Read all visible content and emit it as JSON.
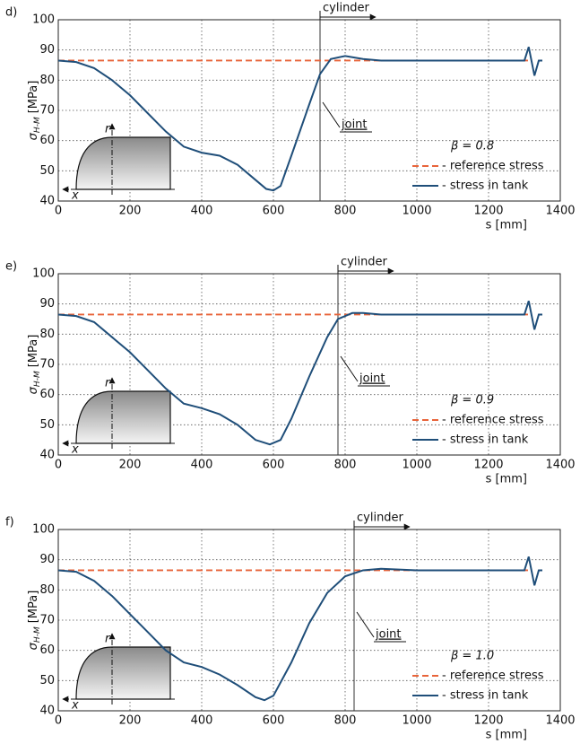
{
  "chart_data": [
    {
      "type": "line",
      "panel_label": "d)",
      "xlabel": "s [mm]",
      "ylabel": {
        "symbol": "σ",
        "subscript": "H-M",
        "unit": "[MPa]"
      },
      "xlim": [
        0,
        1400
      ],
      "ylim": [
        40,
        100
      ],
      "xticks": [
        0,
        200,
        400,
        600,
        800,
        1000,
        1200,
        1400
      ],
      "yticks": [
        40,
        50,
        60,
        70,
        80,
        90,
        100
      ],
      "grid": true,
      "legend": "lower right",
      "joint_x": 730,
      "annotations": {
        "cylinder": "cylinder",
        "joint": "joint",
        "beta": "β = 0.8"
      },
      "inset_labels": {
        "r": "r",
        "x": "x"
      },
      "series": [
        {
          "name": "- reference stress",
          "color": "#e8643a",
          "dashed": true,
          "x": [
            0,
            1310
          ],
          "values": [
            86.5,
            86.5
          ]
        },
        {
          "name": "- stress in tank",
          "color": "#1f4e79",
          "dashed": false,
          "x": [
            0,
            50,
            100,
            150,
            200,
            250,
            300,
            350,
            400,
            450,
            500,
            550,
            580,
            600,
            620,
            650,
            700,
            730,
            760,
            800,
            850,
            900,
            1000,
            1100,
            1200,
            1300,
            1312,
            1328,
            1340,
            1350
          ],
          "values": [
            86.5,
            86,
            84,
            80,
            75,
            69,
            63,
            58,
            56,
            55,
            52,
            47,
            44,
            43.5,
            45,
            55,
            72,
            82,
            87,
            88,
            87,
            86.5,
            86.5,
            86.5,
            86.5,
            86.5,
            91,
            81.5,
            86.5,
            86.5
          ]
        }
      ]
    },
    {
      "type": "line",
      "panel_label": "e)",
      "xlabel": "s [mm]",
      "ylabel": {
        "symbol": "σ",
        "subscript": "H-M",
        "unit": "[MPa]"
      },
      "xlim": [
        0,
        1400
      ],
      "ylim": [
        40,
        100
      ],
      "xticks": [
        0,
        200,
        400,
        600,
        800,
        1000,
        1200,
        1400
      ],
      "yticks": [
        40,
        50,
        60,
        70,
        80,
        90,
        100
      ],
      "grid": true,
      "legend": "lower right",
      "joint_x": 780,
      "annotations": {
        "cylinder": "cylinder",
        "joint": "joint",
        "beta": "β = 0.9"
      },
      "inset_labels": {
        "r": "r",
        "x": "x"
      },
      "series": [
        {
          "name": "- reference stress",
          "color": "#e8643a",
          "dashed": true,
          "x": [
            0,
            1310
          ],
          "values": [
            86.5,
            86.5
          ]
        },
        {
          "name": "- stress in tank",
          "color": "#1f4e79",
          "dashed": false,
          "x": [
            0,
            50,
            100,
            150,
            200,
            250,
            300,
            350,
            400,
            450,
            500,
            550,
            590,
            620,
            650,
            700,
            750,
            780,
            820,
            850,
            900,
            1000,
            1100,
            1200,
            1300,
            1312,
            1328,
            1340,
            1350
          ],
          "values": [
            86.5,
            86,
            84,
            79,
            74,
            68,
            62,
            57,
            55.5,
            53.5,
            50,
            45,
            43.5,
            45,
            52,
            66,
            79,
            85,
            87,
            87,
            86.5,
            86.5,
            86.5,
            86.5,
            86.5,
            91,
            81.5,
            86.5,
            86.5
          ]
        }
      ]
    },
    {
      "type": "line",
      "panel_label": "f)",
      "xlabel": "s [mm]",
      "ylabel": {
        "symbol": "σ",
        "subscript": "H-M",
        "unit": "[MPa]"
      },
      "xlim": [
        0,
        1400
      ],
      "ylim": [
        40,
        100
      ],
      "xticks": [
        0,
        200,
        400,
        600,
        800,
        1000,
        1200,
        1400
      ],
      "yticks": [
        40,
        50,
        60,
        70,
        80,
        90,
        100
      ],
      "grid": true,
      "legend": "lower right",
      "joint_x": 825,
      "annotations": {
        "cylinder": "cylinder",
        "joint": "joint",
        "beta": "β = 1.0"
      },
      "inset_labels": {
        "r": "r",
        "x": "x"
      },
      "series": [
        {
          "name": "- reference stress",
          "color": "#e8643a",
          "dashed": true,
          "x": [
            0,
            1310
          ],
          "values": [
            86.5,
            86.5
          ]
        },
        {
          "name": "- stress in tank",
          "color": "#1f4e79",
          "dashed": false,
          "x": [
            0,
            50,
            100,
            150,
            200,
            250,
            300,
            350,
            400,
            450,
            500,
            550,
            575,
            600,
            650,
            700,
            750,
            800,
            850,
            900,
            1000,
            1100,
            1200,
            1300,
            1312,
            1328,
            1340,
            1350
          ],
          "values": [
            86.5,
            86,
            83,
            78,
            72,
            66,
            60,
            56,
            54.5,
            52,
            48.5,
            44.5,
            43.5,
            45,
            56,
            69,
            79,
            84.5,
            86.5,
            87,
            86.5,
            86.5,
            86.5,
            86.5,
            91,
            81.5,
            86.5,
            86.5
          ]
        }
      ]
    }
  ]
}
